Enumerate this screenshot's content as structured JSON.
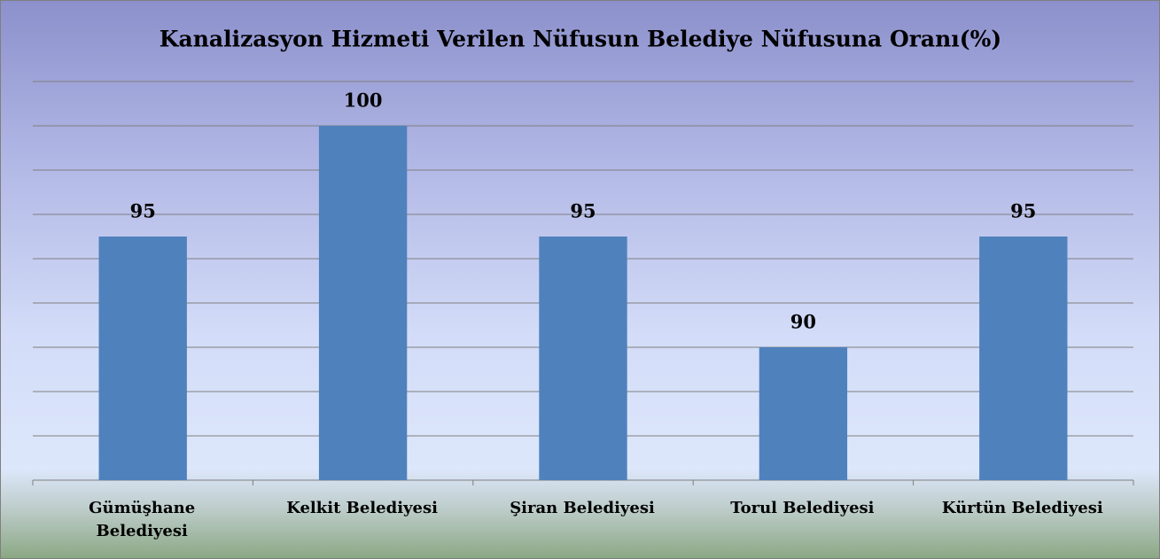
{
  "chart_data": {
    "type": "bar",
    "title": "Kanalizasyon Hizmeti Verilen Nüfusun Belediye Nüfusuna Oranı(%)",
    "categories": [
      "Gümüşhane Belediyesi",
      "Kelkit Belediyesi",
      "Şiran Belediyesi",
      "Torul Belediyesi",
      "Kürtün Belediyesi"
    ],
    "values": [
      95,
      100,
      95,
      90,
      95
    ],
    "color": "#4f81bd",
    "ylim": [
      84,
      102
    ],
    "yticks": [
      84,
      86,
      88,
      90,
      92,
      94,
      96,
      98,
      100,
      102
    ],
    "grid": true
  }
}
